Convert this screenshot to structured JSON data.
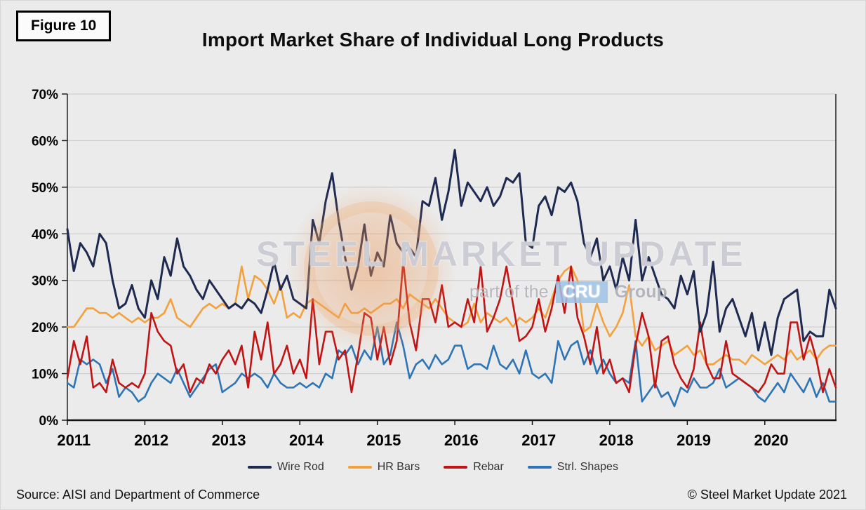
{
  "figure_label": "Figure 10",
  "footer": {
    "source": "Source: AISI and Department of Commerce",
    "copyright": "© Steel Market Update 2021"
  },
  "watermark": {
    "line1": "STEEL MARKET UPDATE",
    "line2_pre": "part of the",
    "line2_box": "CRU",
    "line2_post": "Group"
  },
  "chart_data": {
    "type": "line",
    "title": "Import Market Share of Individual Long Products",
    "x_tick_labels": [
      "2011",
      "2012",
      "2013",
      "2014",
      "2015",
      "2016",
      "2017",
      "2018",
      "2019",
      "2020"
    ],
    "y_tick_labels": [
      "0%",
      "10%",
      "20%",
      "30%",
      "40%",
      "50%",
      "60%",
      "70%"
    ],
    "ylim": [
      0,
      70
    ],
    "x_unit": "month",
    "grid": true,
    "legend_position": "bottom",
    "series": [
      {
        "name": "Wire Rod",
        "color": "#1F2A50",
        "values": [
          41,
          32,
          38,
          36,
          33,
          40,
          38,
          30,
          24,
          25,
          29,
          24,
          22,
          30,
          26,
          35,
          31,
          39,
          33,
          31,
          28,
          26,
          30,
          28,
          26,
          24,
          25,
          24,
          26,
          25,
          23,
          28,
          34,
          28,
          31,
          26,
          25,
          24,
          43,
          38,
          47,
          53,
          43,
          35,
          28,
          33,
          42,
          31,
          36,
          33,
          44,
          38,
          36,
          37,
          35,
          47,
          46,
          52,
          43,
          49,
          58,
          46,
          51,
          49,
          47,
          50,
          46,
          48,
          52,
          51,
          53,
          38,
          37,
          46,
          48,
          44,
          50,
          49,
          51,
          47,
          38,
          35,
          39,
          30,
          33,
          28,
          35,
          30,
          43,
          30,
          35,
          31,
          27,
          26,
          24,
          31,
          27,
          32,
          19,
          23,
          34,
          19,
          24,
          26,
          22,
          18,
          23,
          15,
          21,
          14,
          22,
          26,
          27,
          28,
          17,
          19,
          18,
          18,
          28,
          24
        ]
      },
      {
        "name": "HR Bars",
        "color": "#F4A13C",
        "values": [
          20,
          20,
          22,
          24,
          24,
          23,
          23,
          22,
          23,
          22,
          21,
          22,
          21,
          22,
          22,
          23,
          26,
          22,
          21,
          20,
          22,
          24,
          25,
          24,
          25,
          24,
          25,
          33,
          26,
          31,
          30,
          28,
          25,
          29,
          22,
          23,
          22,
          25,
          26,
          25,
          24,
          23,
          22,
          25,
          23,
          23,
          24,
          23,
          24,
          25,
          25,
          26,
          24,
          27,
          26,
          25,
          24,
          26,
          24,
          22,
          21,
          20,
          21,
          25,
          21,
          23,
          22,
          21,
          22,
          20,
          22,
          21,
          22,
          24,
          22,
          26,
          30,
          32,
          33,
          30,
          19,
          20,
          25,
          21,
          18,
          20,
          23,
          29,
          18,
          16,
          18,
          15,
          16,
          17,
          14,
          15,
          16,
          14,
          15,
          12,
          12,
          13,
          14,
          13,
          13,
          12,
          14,
          13,
          12,
          13,
          14,
          13,
          15,
          13,
          14,
          15,
          13,
          15,
          16,
          16
        ]
      },
      {
        "name": "Rebar",
        "color": "#C21414",
        "values": [
          9,
          17,
          12,
          18,
          7,
          8,
          6,
          13,
          8,
          7,
          8,
          7,
          10,
          23,
          19,
          17,
          16,
          10,
          12,
          6,
          9,
          8,
          12,
          10,
          13,
          15,
          12,
          16,
          7,
          19,
          13,
          21,
          10,
          12,
          16,
          10,
          13,
          9,
          26,
          12,
          19,
          19,
          13,
          15,
          6,
          14,
          23,
          22,
          13,
          20,
          12,
          17,
          34,
          21,
          15,
          26,
          26,
          21,
          29,
          20,
          21,
          20,
          26,
          21,
          33,
          19,
          22,
          26,
          33,
          25,
          17,
          18,
          20,
          26,
          19,
          24,
          31,
          23,
          33,
          22,
          18,
          12,
          20,
          10,
          13,
          8,
          9,
          6,
          16,
          23,
          18,
          7,
          17,
          18,
          12,
          9,
          7,
          11,
          21,
          12,
          9,
          9,
          17,
          10,
          9,
          8,
          7,
          6,
          8,
          12,
          10,
          10,
          21,
          21,
          13,
          18,
          13,
          6,
          11,
          7
        ]
      },
      {
        "name": "Strl. Shapes",
        "color": "#2E75B6",
        "values": [
          8,
          7,
          13,
          12,
          13,
          12,
          8,
          11,
          5,
          7,
          6,
          4,
          5,
          8,
          10,
          9,
          8,
          11,
          8,
          5,
          7,
          9,
          11,
          12,
          6,
          7,
          8,
          10,
          9,
          10,
          9,
          7,
          10,
          8,
          7,
          7,
          8,
          7,
          8,
          7,
          10,
          9,
          15,
          14,
          16,
          12,
          15,
          13,
          20,
          12,
          14,
          21,
          16,
          9,
          12,
          13,
          11,
          14,
          12,
          13,
          16,
          16,
          11,
          12,
          12,
          11,
          16,
          12,
          11,
          13,
          10,
          15,
          10,
          9,
          10,
          8,
          17,
          13,
          16,
          17,
          12,
          15,
          10,
          13,
          10,
          8,
          9,
          8,
          17,
          4,
          6,
          8,
          5,
          6,
          3,
          7,
          6,
          9,
          7,
          7,
          8,
          11,
          7,
          8,
          9,
          8,
          7,
          5,
          4,
          6,
          8,
          6,
          10,
          8,
          6,
          9,
          5,
          8,
          4,
          4
        ]
      }
    ]
  }
}
